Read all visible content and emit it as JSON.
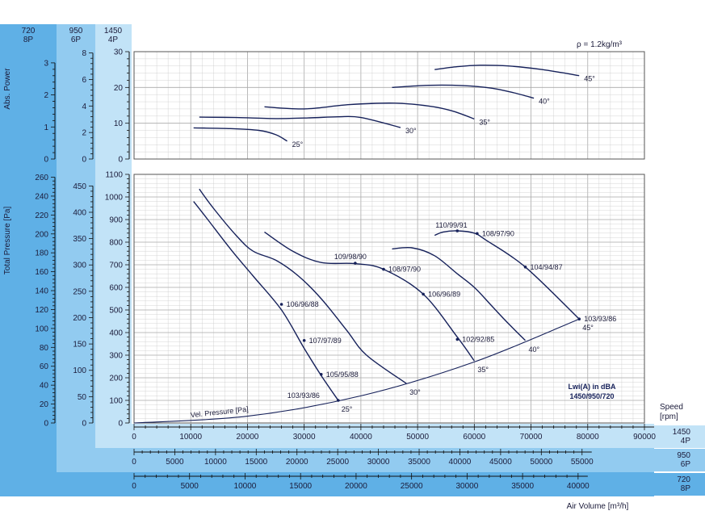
{
  "colors": {
    "band_dark": "#5fb0e6",
    "band_mid": "#92cbf0",
    "band_light": "#c2e3f7",
    "curve": "#16215a",
    "grid": "#c9c9c9",
    "frame": "#555555",
    "text": "#1b1b3a"
  },
  "speed_headers": [
    {
      "rpm": "720",
      "poles": "8P"
    },
    {
      "rpm": "950",
      "poles": "6P"
    },
    {
      "rpm": "1450",
      "poles": "4P"
    }
  ],
  "density_note": "ρ = 1.2kg/m³",
  "power_axis_title": "Abs. Power",
  "pressure_axis_title": "Total Pressure [Pa]",
  "speed_label": [
    "Speed",
    "[rpm]"
  ],
  "bottom_axis_title": "Air Volume [m³/h]",
  "lwi_note": [
    "Lwi(A) in dBA",
    "1450/950/720"
  ],
  "vel_pressure_label": "Vel. Pressure [Pa]",
  "x_scales": [
    {
      "rpm": "1450",
      "poles": "4P",
      "ticks": [
        "0",
        "10000",
        "20000",
        "30000",
        "40000",
        "50000",
        "60000",
        "70000",
        "80000",
        "90000"
      ]
    },
    {
      "rpm": "950",
      "poles": "6P",
      "ticks": [
        "0",
        "5000",
        "10000",
        "15000",
        "20000",
        "25000",
        "30000",
        "35000",
        "40000",
        "45000",
        "50000",
        "55000"
      ]
    },
    {
      "rpm": "720",
      "poles": "8P",
      "ticks": [
        "0",
        "5000",
        "10000",
        "15000",
        "20000",
        "25000",
        "30000",
        "35000",
        "40000"
      ]
    }
  ],
  "power_scales": [
    {
      "ticks": [
        "0",
        "1",
        "2",
        "3"
      ]
    },
    {
      "ticks": [
        "0",
        "2",
        "4",
        "6",
        "8"
      ]
    },
    {
      "ticks": [
        "0",
        "10",
        "20",
        "30"
      ]
    }
  ],
  "pressure_scales": [
    {
      "ticks": [
        "0",
        "20",
        "40",
        "60",
        "80",
        "100",
        "120",
        "140",
        "160",
        "180",
        "200",
        "220",
        "240",
        "260"
      ]
    },
    {
      "ticks": [
        "0",
        "50",
        "100",
        "150",
        "200",
        "250",
        "300",
        "350",
        "400",
        "450"
      ]
    },
    {
      "ticks": [
        "0",
        "100",
        "200",
        "300",
        "400",
        "500",
        "600",
        "700",
        "800",
        "900",
        "1000",
        "1100"
      ]
    }
  ],
  "chart_data": [
    {
      "type": "line",
      "title": "Abs. Power",
      "x_unit": "m³/h (1450 rpm)",
      "xlim": [
        0,
        90000
      ],
      "ylim": [
        0,
        30
      ],
      "grid": true,
      "series": [
        {
          "name": "25°",
          "x": [
            10500,
            17000,
            22000,
            25000,
            27000
          ],
          "y": [
            8.7,
            8.5,
            8.0,
            6.8,
            5.0
          ]
        },
        {
          "name": "30°",
          "x": [
            11500,
            18000,
            25000,
            31000,
            36000,
            40000,
            47000
          ],
          "y": [
            11.7,
            11.6,
            11.3,
            11.5,
            11.8,
            11.6,
            8.8
          ]
        },
        {
          "name": "35°",
          "x": [
            23000,
            30000,
            38000,
            46000,
            52000,
            56000,
            60000
          ],
          "y": [
            14.6,
            14.0,
            15.2,
            15.6,
            14.8,
            13.5,
            11.2
          ]
        },
        {
          "name": "40°",
          "x": [
            45500,
            52000,
            58000,
            63000,
            67000,
            70500
          ],
          "y": [
            20.0,
            20.6,
            20.5,
            19.8,
            18.5,
            17.0
          ]
        },
        {
          "name": "45°",
          "x": [
            53000,
            57000,
            61000,
            66000,
            72000,
            78500
          ],
          "y": [
            25.0,
            25.8,
            26.2,
            26.0,
            25.0,
            23.3
          ]
        }
      ]
    },
    {
      "type": "line",
      "title": "Total Pressure [Pa]",
      "x_unit": "m³/h (1450 rpm)",
      "xlim": [
        0,
        90000
      ],
      "ylim": [
        0,
        1100
      ],
      "grid": true,
      "series": [
        {
          "name": "25°",
          "x": [
            10500,
            13000,
            17000,
            21000,
            26000,
            30000,
            33000,
            36000
          ],
          "y": [
            980,
            900,
            770,
            650,
            500,
            330,
            210,
            100
          ]
        },
        {
          "name": "30°",
          "x": [
            11500,
            14000,
            18000,
            21000,
            25000,
            29000,
            33000,
            37500,
            41000,
            48000
          ],
          "y": [
            1035,
            950,
            830,
            760,
            720,
            650,
            550,
            410,
            300,
            175
          ]
        },
        {
          "name": "35°",
          "x": [
            23000,
            28000,
            33000,
            39000,
            44000,
            51000,
            57000,
            60000
          ],
          "y": [
            845,
            760,
            710,
            705,
            680,
            570,
            380,
            275
          ]
        },
        {
          "name": "40°",
          "x": [
            45500,
            49000,
            53000,
            57000,
            60000,
            63000,
            66000,
            69000
          ],
          "y": [
            770,
            775,
            740,
            660,
            600,
            520,
            440,
            365
          ]
        },
        {
          "name": "45°",
          "x": [
            53000,
            54500,
            57000,
            60000,
            62000,
            69000,
            78500
          ],
          "y": [
            830,
            845,
            850,
            840,
            810,
            690,
            460
          ]
        },
        {
          "name": "Vel. Pressure [Pa]",
          "x": [
            0,
            20000,
            40000,
            60000,
            78500
          ],
          "y": [
            0,
            30,
            120,
            270,
            460
          ]
        }
      ],
      "annotations": [
        {
          "x": 26000,
          "y": 525,
          "text": "106/96/88"
        },
        {
          "x": 30000,
          "y": 365,
          "text": "107/97/89"
        },
        {
          "x": 33000,
          "y": 215,
          "text": "105/95/88"
        },
        {
          "x": 36000,
          "y": 100,
          "text": "103/93/86"
        },
        {
          "x": 39000,
          "y": 707,
          "text": "109/98/90"
        },
        {
          "x": 44000,
          "y": 680,
          "text": "108/97/90"
        },
        {
          "x": 51000,
          "y": 570,
          "text": "106/96/89"
        },
        {
          "x": 57000,
          "y": 370,
          "text": "102/92/85"
        },
        {
          "x": 57000,
          "y": 850,
          "text": "110/99/91"
        },
        {
          "x": 60500,
          "y": 838,
          "text": "108/97/90"
        },
        {
          "x": 69000,
          "y": 690,
          "text": "104/94/87"
        },
        {
          "x": 78500,
          "y": 460,
          "text": "103/93/86"
        }
      ],
      "angle_labels": [
        "25°",
        "30°",
        "35°",
        "40°",
        "45°"
      ]
    }
  ]
}
